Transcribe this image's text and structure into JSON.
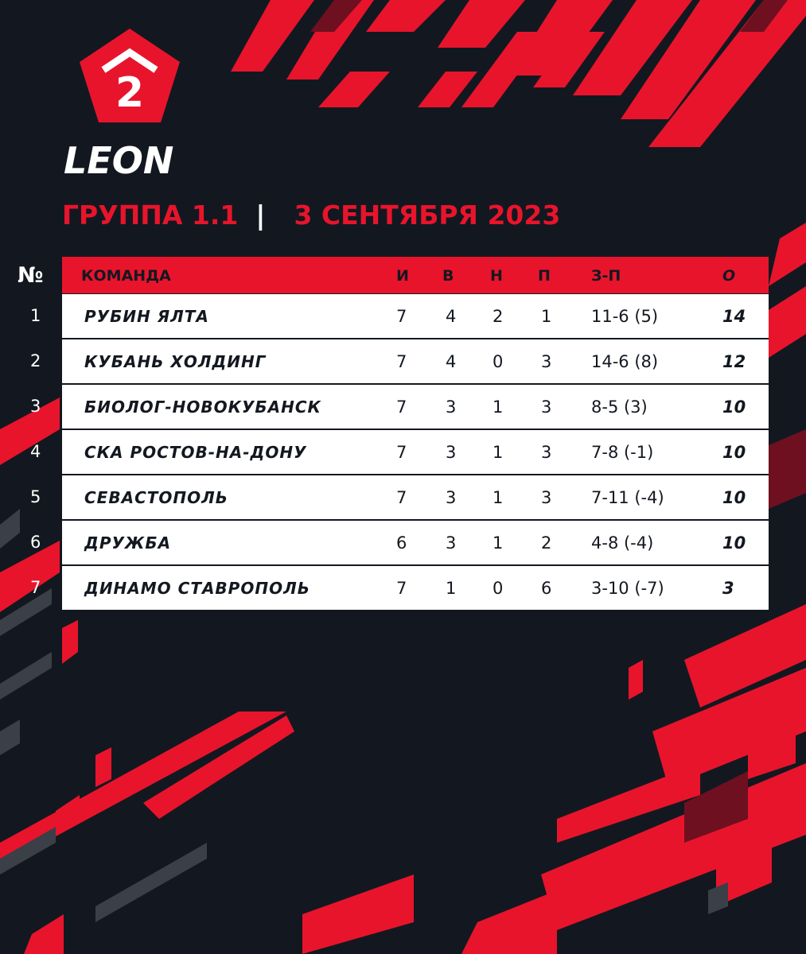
{
  "header": {
    "logo_digit": "2",
    "logo_text": "LEON",
    "group": "ГРУППА 1.1",
    "separator": "|",
    "date": "3 СЕНТЯБРЯ 2023"
  },
  "colors": {
    "accent": "#e8142c",
    "background": "#131820",
    "row_bg": "#ffffff",
    "dark_red": "#7a1020"
  },
  "table": {
    "num_header": "№",
    "columns": [
      "КОМАНДА",
      "И",
      "В",
      "Н",
      "П",
      "З-П",
      "О"
    ],
    "rows": [
      {
        "pos": "1",
        "team": "РУБИН ЯЛТА",
        "i": "7",
        "w": "4",
        "d": "2",
        "l": "1",
        "gd": "11-6 (5)",
        "pts": "14"
      },
      {
        "pos": "2",
        "team": "КУБАНЬ ХОЛДИНГ",
        "i": "7",
        "w": "4",
        "d": "0",
        "l": "3",
        "gd": "14-6 (8)",
        "pts": "12"
      },
      {
        "pos": "3",
        "team": "БИОЛОГ-НОВОКУБАНСК",
        "i": "7",
        "w": "3",
        "d": "1",
        "l": "3",
        "gd": "8-5 (3)",
        "pts": "10"
      },
      {
        "pos": "4",
        "team": "СКА РОСТОВ-НА-ДОНУ",
        "i": "7",
        "w": "3",
        "d": "1",
        "l": "3",
        "gd": "7-8 (-1)",
        "pts": "10"
      },
      {
        "pos": "5",
        "team": "СЕВАСТОПОЛЬ",
        "i": "7",
        "w": "3",
        "d": "1",
        "l": "3",
        "gd": "7-11 (-4)",
        "pts": "10"
      },
      {
        "pos": "6",
        "team": "ДРУЖБА",
        "i": "6",
        "w": "3",
        "d": "1",
        "l": "2",
        "gd": "4-8 (-4)",
        "pts": "10"
      },
      {
        "pos": "7",
        "team": "ДИНАМО СТАВРОПОЛЬ",
        "i": "7",
        "w": "1",
        "d": "0",
        "l": "6",
        "gd": "3-10 (-7)",
        "pts": "3"
      }
    ]
  }
}
